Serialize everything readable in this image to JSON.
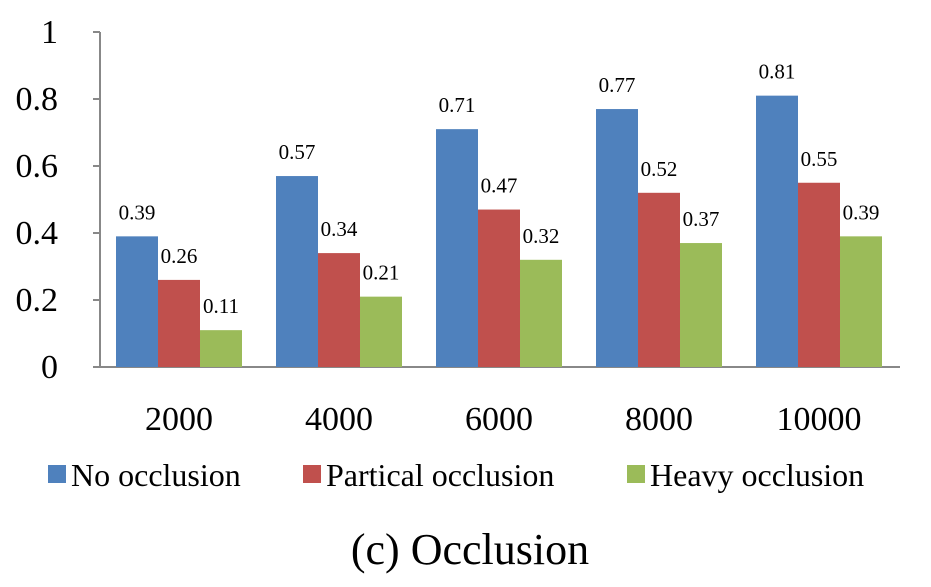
{
  "chart_data": {
    "type": "bar",
    "categories": [
      "2000",
      "4000",
      "6000",
      "8000",
      "10000"
    ],
    "series": [
      {
        "name": "No occlusion",
        "values": [
          0.39,
          0.57,
          0.71,
          0.77,
          0.81
        ],
        "color": "#4F81BD"
      },
      {
        "name": "Partical occlusion",
        "values": [
          0.26,
          0.34,
          0.47,
          0.52,
          0.55
        ],
        "color": "#C0504D"
      },
      {
        "name": "Heavy occlusion",
        "values": [
          0.11,
          0.21,
          0.32,
          0.37,
          0.39
        ],
        "color": "#9BBB59"
      }
    ],
    "ylim": [
      0,
      1
    ],
    "yticks": [
      "0",
      "0.2",
      "0.4",
      "0.6",
      "0.8",
      "1"
    ],
    "grid": false,
    "legend_placement": "bottom",
    "caption": "(c) Occlusion"
  }
}
